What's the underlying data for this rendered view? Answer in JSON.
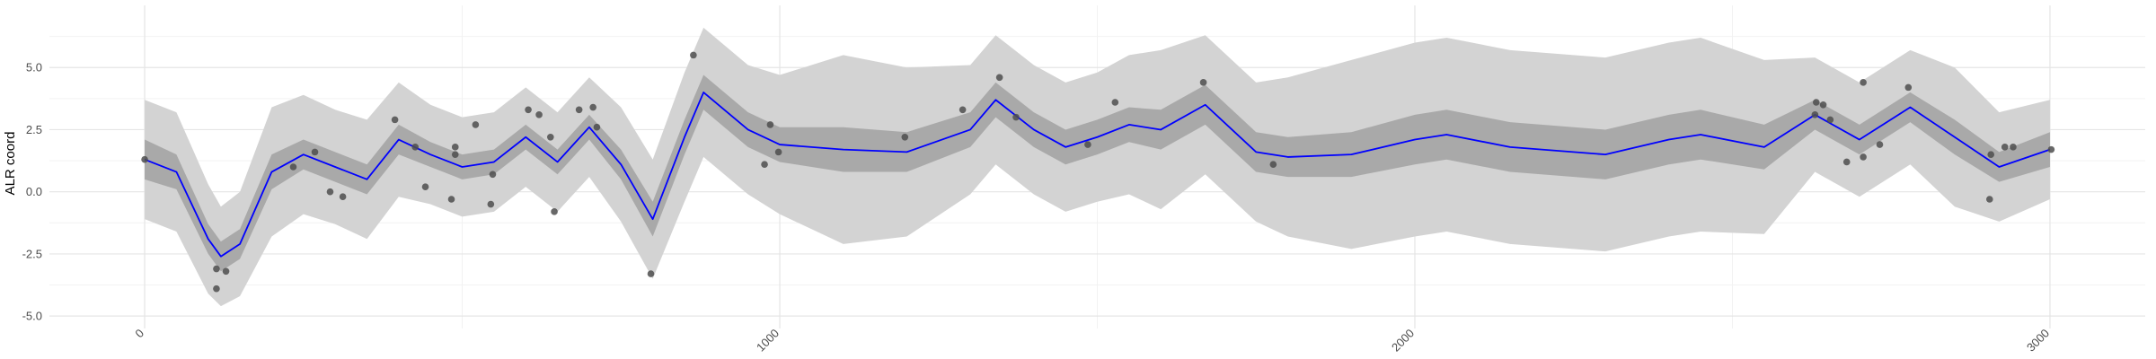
{
  "chart_data": {
    "type": "line",
    "y_label": "ALR coord",
    "x": [
      0,
      50,
      100,
      120,
      150,
      200,
      250,
      300,
      350,
      400,
      450,
      500,
      550,
      600,
      650,
      700,
      750,
      800,
      850,
      880,
      950,
      1000,
      1100,
      1200,
      1300,
      1340,
      1400,
      1450,
      1500,
      1550,
      1600,
      1670,
      1750,
      1800,
      1900,
      2000,
      2050,
      2150,
      2300,
      2400,
      2450,
      2550,
      2630,
      2700,
      2780,
      2850,
      2920,
      3000
    ],
    "values": [
      1.3,
      0.8,
      -1.9,
      -2.6,
      -2.1,
      0.8,
      1.5,
      1.0,
      0.5,
      2.1,
      1.5,
      1.0,
      1.2,
      2.2,
      1.2,
      2.6,
      1.1,
      -1.1,
      2.2,
      4.0,
      2.5,
      1.9,
      1.7,
      1.6,
      2.5,
      3.7,
      2.5,
      1.8,
      2.2,
      2.7,
      2.5,
      3.5,
      1.6,
      1.4,
      1.5,
      2.1,
      2.3,
      1.8,
      1.5,
      2.1,
      2.3,
      1.8,
      3.1,
      2.1,
      3.4,
      2.2,
      1.0,
      1.7
    ],
    "color": "#0000ff",
    "bands": [
      {
        "color": "#d3d3d3",
        "lower": [
          -1.1,
          -1.6,
          -4.1,
          -4.6,
          -4.2,
          -1.8,
          -0.9,
          -1.3,
          -1.9,
          -0.2,
          -0.5,
          -1.0,
          -0.8,
          0.2,
          -0.8,
          0.6,
          -1.2,
          -3.5,
          -0.4,
          1.4,
          -0.1,
          -0.9,
          -2.1,
          -1.8,
          -0.1,
          1.1,
          -0.1,
          -0.8,
          -0.4,
          -0.1,
          -0.7,
          0.7,
          -1.2,
          -1.8,
          -2.3,
          -1.8,
          -1.6,
          -2.1,
          -2.4,
          -1.8,
          -1.6,
          -1.7,
          0.8,
          -0.2,
          1.1,
          -0.6,
          -1.2,
          -0.3
        ],
        "upper": [
          3.7,
          3.2,
          0.3,
          -0.6,
          0.0,
          3.4,
          3.9,
          3.3,
          2.9,
          4.4,
          3.5,
          3.0,
          3.2,
          4.2,
          3.2,
          4.6,
          3.4,
          1.3,
          4.8,
          6.6,
          5.1,
          4.7,
          5.5,
          5.0,
          5.1,
          6.3,
          5.1,
          4.4,
          4.8,
          5.5,
          5.7,
          6.3,
          4.4,
          4.6,
          5.3,
          6.0,
          6.2,
          5.7,
          5.4,
          6.0,
          6.2,
          5.3,
          5.4,
          4.4,
          5.7,
          5.0,
          3.2,
          3.7
        ]
      },
      {
        "color": "#a9a9a9",
        "lower": [
          0.5,
          0.1,
          -2.5,
          -3.2,
          -2.7,
          0.1,
          0.9,
          0.4,
          -0.1,
          1.5,
          1.0,
          0.5,
          0.7,
          1.7,
          0.7,
          2.1,
          0.5,
          -1.8,
          1.5,
          3.3,
          1.8,
          1.2,
          0.8,
          0.8,
          1.8,
          3.0,
          1.8,
          1.1,
          1.5,
          2.0,
          1.7,
          2.7,
          0.8,
          0.6,
          0.6,
          1.1,
          1.3,
          0.8,
          0.5,
          1.1,
          1.3,
          0.9,
          2.5,
          1.5,
          2.8,
          1.5,
          0.4,
          1.0
        ],
        "upper": [
          2.1,
          1.5,
          -1.3,
          -2.0,
          -1.5,
          1.5,
          2.1,
          1.6,
          1.1,
          2.7,
          2.0,
          1.5,
          1.7,
          2.7,
          1.7,
          3.1,
          1.7,
          -0.4,
          2.9,
          4.7,
          3.2,
          2.6,
          2.6,
          2.4,
          3.2,
          4.4,
          3.2,
          2.5,
          2.9,
          3.4,
          3.3,
          4.3,
          2.4,
          2.2,
          2.4,
          3.1,
          3.3,
          2.8,
          2.5,
          3.1,
          3.3,
          2.7,
          3.7,
          2.7,
          4.0,
          2.9,
          1.6,
          2.4
        ]
      }
    ],
    "points": {
      "color": "#4d4d4d",
      "x": [
        0,
        113,
        128,
        113,
        234,
        268,
        292,
        312,
        394,
        426,
        442,
        483,
        489,
        521,
        489,
        545,
        548,
        604,
        621,
        639,
        645,
        684,
        706,
        712,
        797,
        864,
        976,
        985,
        998,
        1197,
        1288,
        1346,
        1372,
        1485,
        1528,
        1667,
        1777,
        2632,
        2643,
        2630,
        2654,
        2680,
        2706,
        2706,
        2732,
        2777,
        2905,
        2907,
        2929,
        2942,
        3002
      ],
      "y": [
        1.3,
        -3.1,
        -3.2,
        -3.9,
        1.0,
        1.6,
        0.0,
        -0.2,
        2.9,
        1.8,
        0.2,
        -0.3,
        1.5,
        2.7,
        1.8,
        -0.5,
        0.7,
        3.3,
        3.1,
        2.2,
        -0.8,
        3.3,
        3.4,
        2.6,
        -3.3,
        5.5,
        1.1,
        2.7,
        1.6,
        2.2,
        3.3,
        4.6,
        3.0,
        1.9,
        3.6,
        4.4,
        1.1,
        3.6,
        3.5,
        3.1,
        2.9,
        1.2,
        4.4,
        1.4,
        1.9,
        4.2,
        -0.3,
        1.5,
        1.8,
        1.8,
        1.7
      ]
    },
    "xlim": [
      -150,
      3150
    ],
    "ylim": [
      -5.5,
      7.5
    ],
    "xticks": [
      0,
      1000,
      2000,
      3000
    ],
    "yticks": [
      {
        "value": -5,
        "label": "-5.0"
      },
      {
        "value": -2.5,
        "label": "-2.5"
      },
      {
        "value": 0,
        "label": "0.0"
      },
      {
        "value": 2.5,
        "label": "2.5"
      },
      {
        "value": 5,
        "label": "5.0"
      }
    ],
    "x_minor_ticks": [
      500,
      1500,
      2500
    ],
    "y_minor_ticks": [
      -3.75,
      -1.25,
      1.25,
      3.75,
      6.25
    ],
    "grid": true
  }
}
